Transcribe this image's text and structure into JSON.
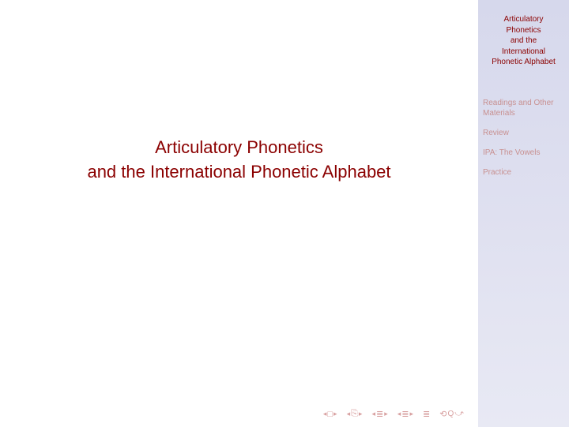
{
  "main": {
    "title_line1": "Articulatory Phonetics",
    "title_line2": "and the International Phonetic Alphabet"
  },
  "sidebar": {
    "title_lines": [
      "Articulatory",
      "Phonetics",
      "and the",
      "International",
      "Phonetic Alphabet"
    ],
    "links": [
      "Readings and Other Materials",
      "Review",
      "IPA: The Vowels",
      "Practice"
    ]
  },
  "colors": {
    "title_color": "#8b0000",
    "sidebar_link_color": "#c89090",
    "sidebar_bg_top": "#d6d8ec",
    "sidebar_bg_bottom": "#e8e9f4",
    "nav_icon_color": "#d8a0a0"
  },
  "nav": {
    "frame_sym": "□",
    "doc_sym": "⎘",
    "section_sym": "≣",
    "undo_sym": "⟲",
    "redo_sym": "⤻"
  }
}
